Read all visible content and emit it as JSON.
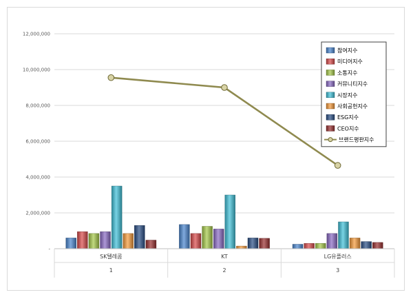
{
  "chart_data": {
    "type": "bar",
    "categories": [
      "SK텔레콤",
      "KT",
      "LG유플러스"
    ],
    "category_groups": [
      "1",
      "2",
      "3"
    ],
    "y_ticks": [
      "-",
      "2,000,000",
      "4,000,000",
      "6,000,000",
      "8,000,000",
      "10,000,000",
      "12,000,000"
    ],
    "ylim": [
      0,
      12000000
    ],
    "grid": true,
    "legend_position": "top-right",
    "series": [
      {
        "name": "참여지수",
        "color": "#4a86cf",
        "values": [
          600000,
          1350000,
          250000
        ]
      },
      {
        "name": "미디어지수",
        "color": "#d84a4a",
        "values": [
          950000,
          850000,
          300000
        ]
      },
      {
        "name": "소통지수",
        "color": "#a6c94a",
        "values": [
          850000,
          1250000,
          300000
        ]
      },
      {
        "name": "커뮤니티지수",
        "color": "#8a6ac4",
        "values": [
          950000,
          1100000,
          850000
        ]
      },
      {
        "name": "시장지수",
        "color": "#3fc0d8",
        "values": [
          3500000,
          3000000,
          1500000
        ]
      },
      {
        "name": "사회공헌지수",
        "color": "#f59a3a",
        "values": [
          850000,
          150000,
          600000
        ]
      },
      {
        "name": "ESG지수",
        "color": "#2a4f86",
        "values": [
          1300000,
          600000,
          400000
        ]
      },
      {
        "name": "CEO지수",
        "color": "#9a2f2f",
        "values": [
          480000,
          580000,
          350000
        ]
      }
    ],
    "line_series": {
      "name": "브랜드평판지수",
      "color": "#8f8a4f",
      "values": [
        9550000,
        9000000,
        4650000
      ]
    }
  }
}
